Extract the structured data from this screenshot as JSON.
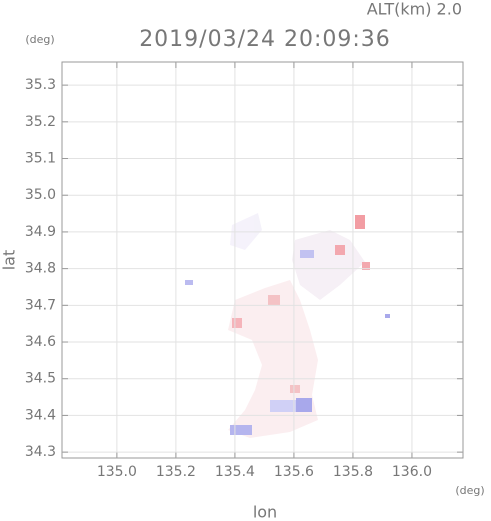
{
  "chart_data": {
    "type": "map",
    "title": "2019/03/24 20:09:36",
    "subtitle": "ALT(km) 2.0",
    "x_label": "lon",
    "y_label": "lat",
    "x_unit": "(deg)",
    "y_unit": "(deg)",
    "xlim": [
      134.814,
      136.173
    ],
    "ylim": [
      34.284,
      35.363
    ],
    "xticks": [
      {
        "value": 135.0,
        "label": "135.0"
      },
      135.2,
      135.4,
      135.6,
      135.8,
      {
        "value": 136.0,
        "label": "136.0"
      }
    ],
    "yticks": [
      34.3,
      34.4,
      34.5,
      34.6,
      34.7,
      34.8,
      34.9,
      {
        "value": 35.0,
        "label": "35.0"
      },
      35.1,
      35.2,
      35.3
    ],
    "grid": true
  }
}
